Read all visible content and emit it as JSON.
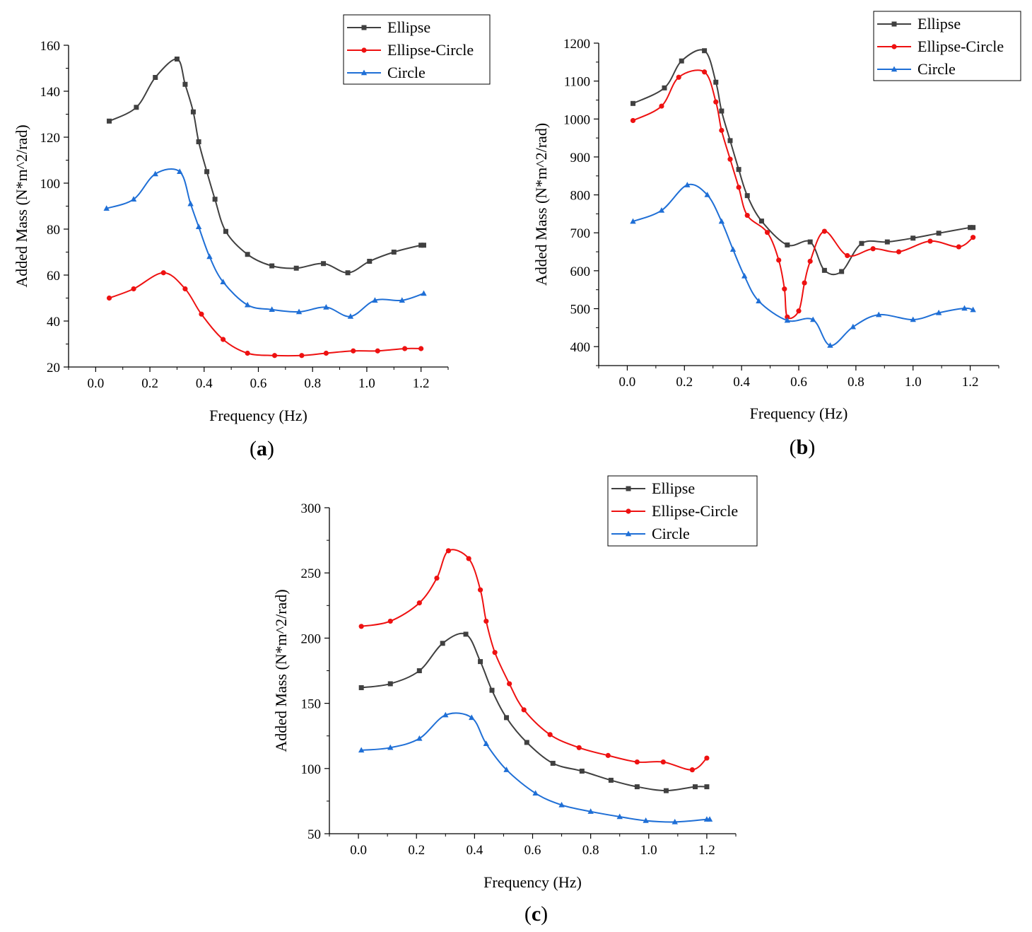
{
  "figure": {
    "panels": [
      {
        "label_open": "(",
        "label_letter": "a",
        "label_close": ")"
      },
      {
        "label_open": "(",
        "label_letter": "b",
        "label_close": ")"
      },
      {
        "label_open": "(",
        "label_letter": "c",
        "label_close": ")"
      }
    ]
  },
  "chart_data": [
    {
      "type": "line",
      "panel": "a",
      "xlabel": "Frequency (Hz)",
      "ylabel": "Added Mass (N*m^2/rad)",
      "xlim": [
        -0.1,
        1.3
      ],
      "ylim": [
        20,
        160
      ],
      "xticks": [
        "0.0",
        "0.2",
        "0.4",
        "0.6",
        "0.8",
        "1.0",
        "1.2"
      ],
      "yticks": [
        "20",
        "40",
        "60",
        "80",
        "100",
        "120",
        "140",
        "160"
      ],
      "legend_position": "top-right",
      "grid": false,
      "series": [
        {
          "name": "Ellipse",
          "color": "#404040",
          "marker": "square",
          "x": [
            0.05,
            0.15,
            0.22,
            0.3,
            0.33,
            0.36,
            0.38,
            0.41,
            0.44,
            0.48,
            0.56,
            0.65,
            0.74,
            0.84,
            0.93,
            1.01,
            1.1,
            1.2,
            1.21
          ],
          "y": [
            127,
            133,
            146,
            154,
            143,
            131,
            118,
            105,
            93,
            79,
            69,
            64,
            63,
            65,
            61,
            66,
            70,
            73,
            73
          ]
        },
        {
          "name": "Ellipse-Circle",
          "color": "#ee1111",
          "marker": "circle",
          "x": [
            0.05,
            0.14,
            0.25,
            0.33,
            0.39,
            0.47,
            0.56,
            0.66,
            0.76,
            0.85,
            0.95,
            1.04,
            1.14,
            1.2
          ],
          "y": [
            50,
            54,
            61,
            54,
            43,
            32,
            26,
            25,
            25,
            26,
            27,
            27,
            28,
            28
          ]
        },
        {
          "name": "Circle",
          "color": "#1f6fd6",
          "marker": "triangle",
          "x": [
            0.04,
            0.14,
            0.22,
            0.31,
            0.35,
            0.38,
            0.42,
            0.47,
            0.56,
            0.65,
            0.75,
            0.85,
            0.94,
            1.03,
            1.13,
            1.21
          ],
          "y": [
            89,
            93,
            104,
            105,
            91,
            81,
            68,
            57,
            47,
            45,
            44,
            46,
            42,
            49,
            49,
            52
          ]
        }
      ]
    },
    {
      "type": "line",
      "panel": "b",
      "xlabel": "Frequency (Hz)",
      "ylabel": "Added Mass (N*m^2/rad)",
      "xlim": [
        -0.1,
        1.3
      ],
      "ylim": [
        350,
        1200
      ],
      "xticks": [
        "0.0",
        "0.2",
        "0.4",
        "0.6",
        "0.8",
        "1.0",
        "1.2"
      ],
      "yticks": [
        "400",
        "500",
        "600",
        "700",
        "800",
        "900",
        "1000",
        "1100",
        "1200"
      ],
      "legend_position": "top-right",
      "grid": false,
      "series": [
        {
          "name": "Ellipse",
          "color": "#404040",
          "marker": "square",
          "x": [
            0.02,
            0.13,
            0.19,
            0.27,
            0.31,
            0.33,
            0.36,
            0.39,
            0.42,
            0.47,
            0.56,
            0.64,
            0.69,
            0.75,
            0.82,
            0.91,
            1.0,
            1.09,
            1.2,
            1.21
          ],
          "y": [
            1041,
            1082,
            1153,
            1180,
            1097,
            1021,
            943,
            867,
            798,
            731,
            668,
            676,
            601,
            598,
            672,
            676,
            686,
            699,
            714,
            714
          ]
        },
        {
          "name": "Ellipse-Circle",
          "color": "#ee1111",
          "marker": "circle",
          "x": [
            0.02,
            0.12,
            0.18,
            0.27,
            0.31,
            0.33,
            0.36,
            0.39,
            0.42,
            0.49,
            0.53,
            0.55,
            0.56,
            0.6,
            0.62,
            0.64,
            0.69,
            0.77,
            0.86,
            0.95,
            1.06,
            1.16,
            1.21
          ],
          "y": [
            996,
            1034,
            1110,
            1124,
            1045,
            970,
            894,
            820,
            746,
            701,
            628,
            552,
            478,
            494,
            568,
            625,
            704,
            640,
            658,
            650,
            678,
            663,
            688
          ]
        },
        {
          "name": "Circle",
          "color": "#1f6fd6",
          "marker": "triangle",
          "x": [
            0.02,
            0.12,
            0.21,
            0.28,
            0.33,
            0.37,
            0.41,
            0.46,
            0.56,
            0.65,
            0.71,
            0.79,
            0.88,
            1.0,
            1.09,
            1.18,
            1.21
          ],
          "y": [
            730,
            759,
            826,
            800,
            730,
            656,
            586,
            520,
            469,
            471,
            403,
            452,
            484,
            471,
            489,
            501,
            497
          ]
        }
      ]
    },
    {
      "type": "line",
      "panel": "c",
      "xlabel": "Frequency (Hz)",
      "ylabel": "Added Mass (N*m^2/rad)",
      "xlim": [
        -0.1,
        1.3
      ],
      "ylim": [
        50,
        300
      ],
      "xticks": [
        "0.0",
        "0.2",
        "0.4",
        "0.6",
        "0.8",
        "1.0",
        "1.2"
      ],
      "yticks": [
        "50",
        "100",
        "150",
        "200",
        "250",
        "300"
      ],
      "legend_position": "top-right",
      "grid": false,
      "series": [
        {
          "name": "Ellipse",
          "color": "#404040",
          "marker": "square",
          "x": [
            0.01,
            0.11,
            0.21,
            0.29,
            0.37,
            0.42,
            0.46,
            0.51,
            0.58,
            0.67,
            0.77,
            0.87,
            0.96,
            1.06,
            1.16,
            1.2
          ],
          "y": [
            162,
            165,
            175,
            196,
            203,
            182,
            160,
            139,
            120,
            104,
            98,
            91,
            86,
            83,
            86,
            86
          ]
        },
        {
          "name": "Ellipse-Circle",
          "color": "#ee1111",
          "marker": "circle",
          "x": [
            0.01,
            0.11,
            0.21,
            0.27,
            0.31,
            0.38,
            0.42,
            0.44,
            0.47,
            0.52,
            0.57,
            0.66,
            0.76,
            0.86,
            0.96,
            1.05,
            1.15,
            1.2
          ],
          "y": [
            209,
            213,
            227,
            246,
            267,
            261,
            237,
            213,
            189,
            165,
            145,
            126,
            116,
            110,
            105,
            105,
            99,
            108
          ]
        },
        {
          "name": "Circle",
          "color": "#1f6fd6",
          "marker": "triangle",
          "x": [
            0.01,
            0.11,
            0.21,
            0.3,
            0.39,
            0.44,
            0.51,
            0.61,
            0.7,
            0.8,
            0.9,
            0.99,
            1.09,
            1.2,
            1.21
          ],
          "y": [
            114,
            116,
            123,
            141,
            139,
            119,
            99,
            81,
            72,
            67,
            63,
            60,
            59,
            61,
            61
          ]
        }
      ]
    }
  ]
}
